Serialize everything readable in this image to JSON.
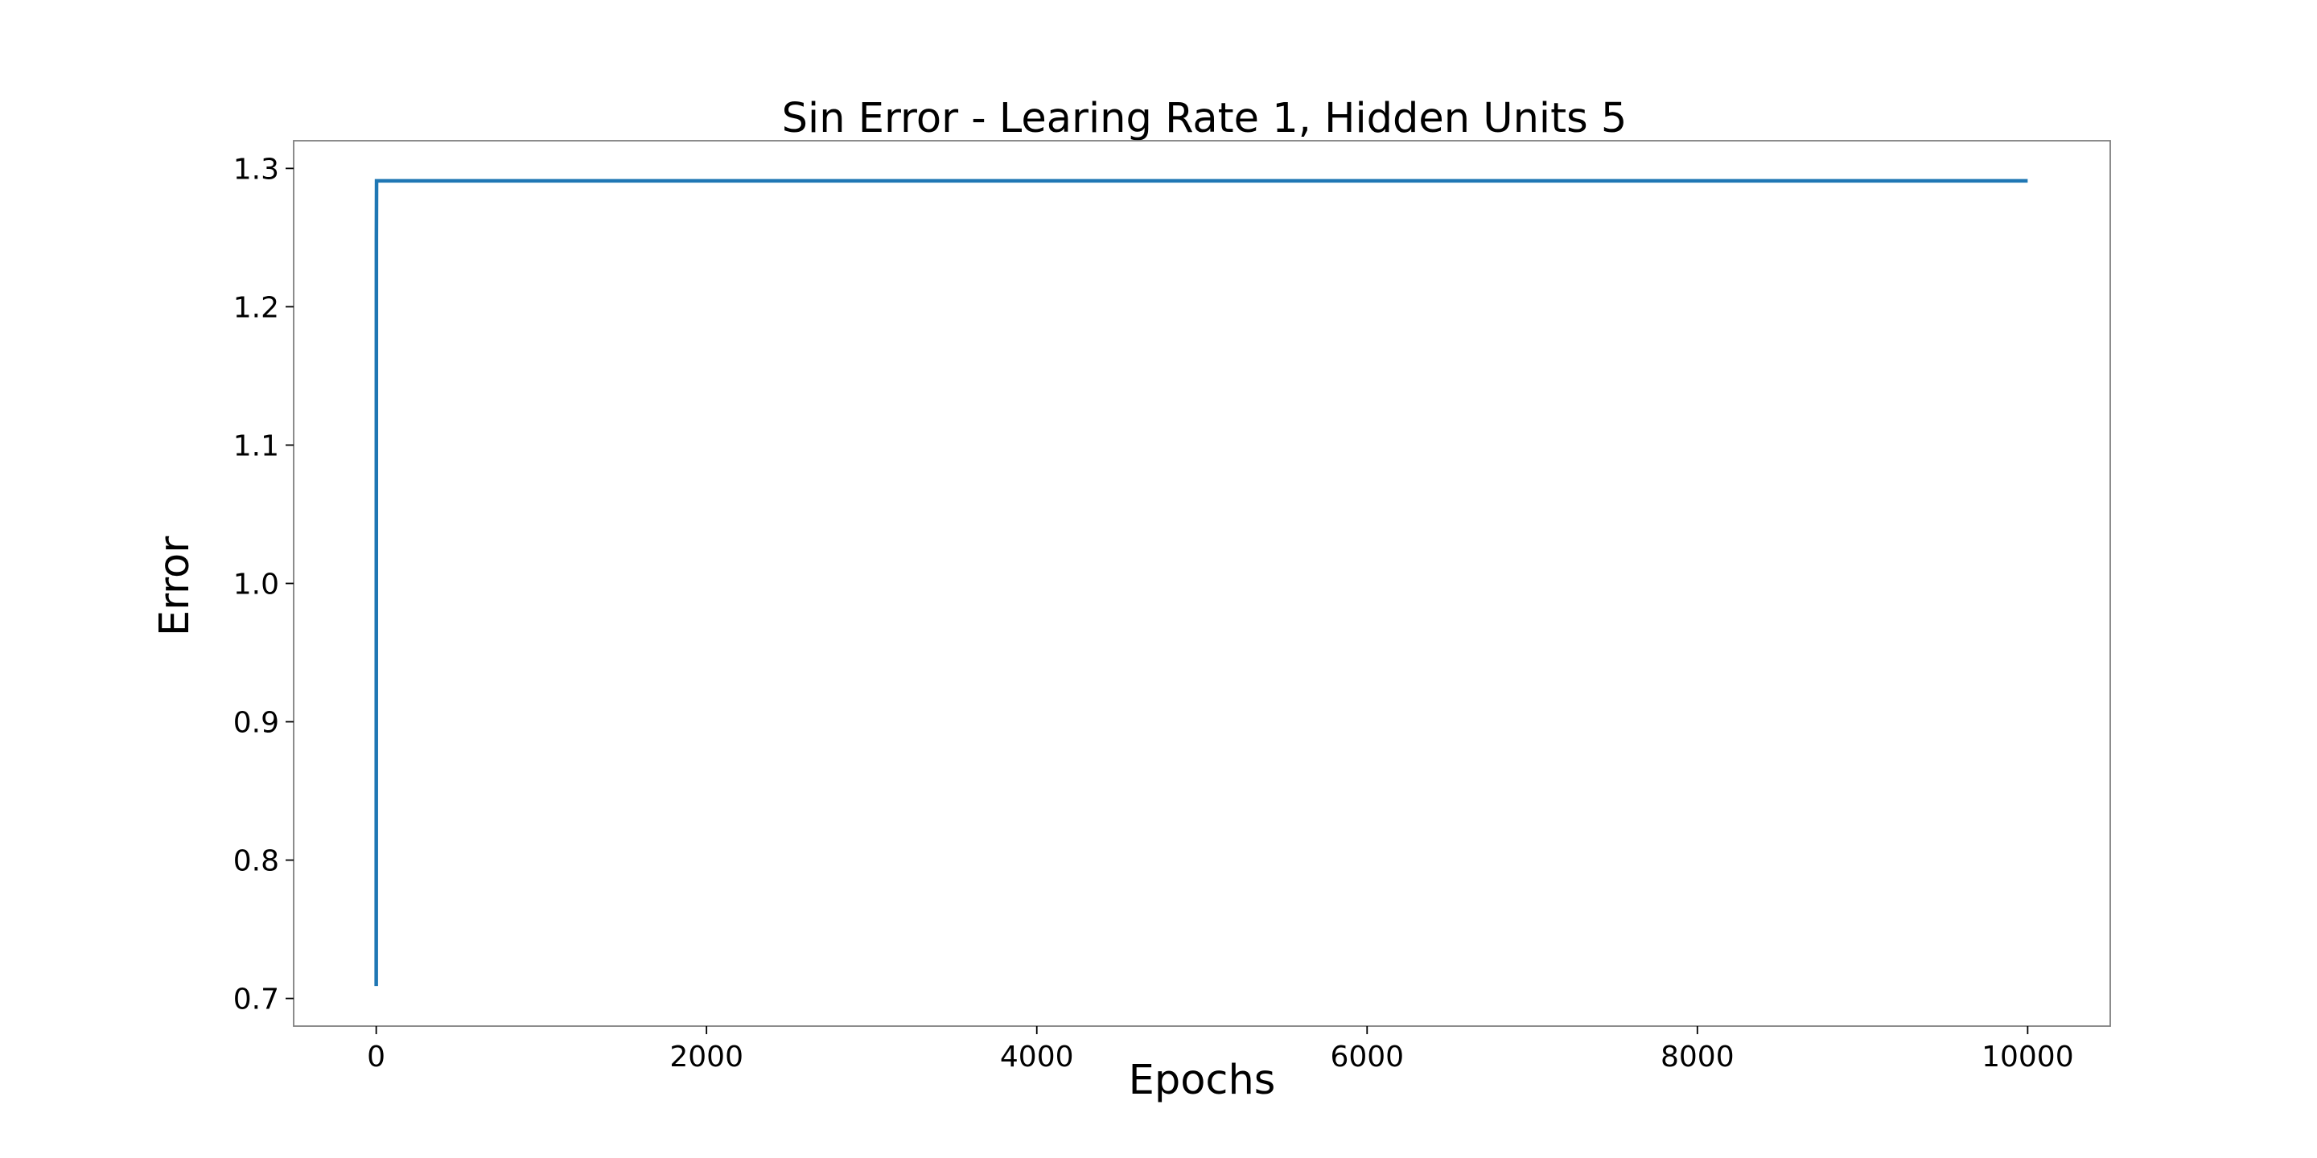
{
  "chart_data": {
    "type": "line",
    "title": "Sin Error - Learing Rate 1, Hidden Units 5",
    "xlabel": "Epochs",
    "ylabel": "Error",
    "xlim": [
      -500,
      10500
    ],
    "ylim": [
      0.68,
      1.32
    ],
    "xticks": [
      0,
      2000,
      4000,
      6000,
      8000,
      10000
    ],
    "xtick_labels": [
      "0",
      "2000",
      "4000",
      "6000",
      "8000",
      "10000"
    ],
    "yticks": [
      0.7,
      0.8,
      0.9,
      1.0,
      1.1,
      1.2,
      1.3
    ],
    "ytick_labels": [
      "0.7",
      "0.8",
      "0.9",
      "1.0",
      "1.1",
      "1.2",
      "1.3"
    ],
    "grid": false,
    "legend": "none",
    "series": [
      {
        "color": "#1f77b4",
        "x": [
          0,
          1,
          2,
          10,
          100,
          1000,
          5000,
          10000
        ],
        "y": [
          0.709,
          1.25,
          1.291,
          1.291,
          1.291,
          1.291,
          1.291,
          1.291
        ]
      }
    ]
  }
}
